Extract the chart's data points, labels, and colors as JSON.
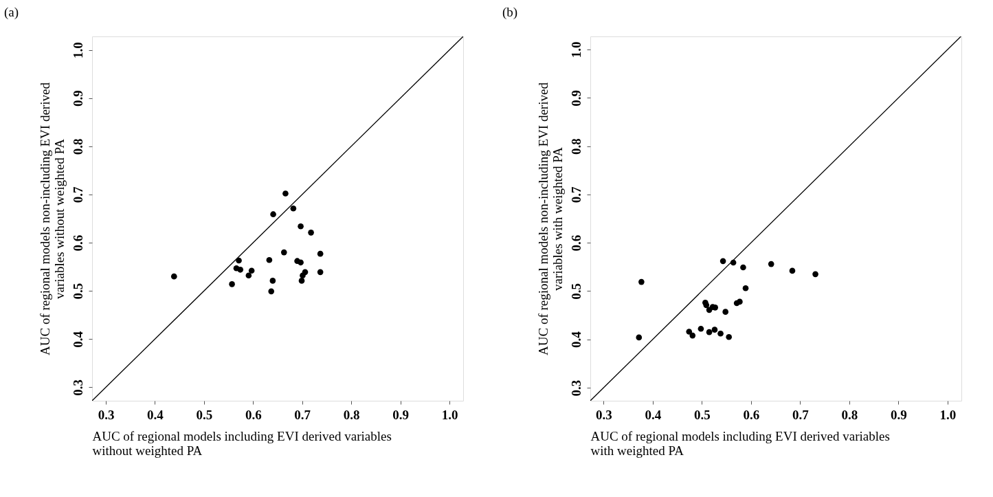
{
  "chart_data": [
    {
      "type": "scatter",
      "title": "(a)",
      "xlabel": "AUC of regional models including EVI derived variables\nwithout weighted PA",
      "ylabel": "AUC of regional models non-including EVI derived\nvariables without weighted PA",
      "xlim": [
        0.272,
        1.028
      ],
      "ylim": [
        0.272,
        1.028
      ],
      "xticks": [
        0.3,
        0.4,
        0.5,
        0.6,
        0.7,
        0.8,
        0.9,
        {
          "value": 1.0,
          "label": "1.0"
        }
      ],
      "yticks": [
        0.3,
        0.4,
        0.5,
        0.6,
        0.7,
        0.8,
        0.9,
        {
          "value": 1.0,
          "label": "1.0"
        }
      ],
      "grid": false,
      "series": [
        {
          "color": "#000000",
          "marker": "circle",
          "x": [
            0.439,
            0.666,
            0.682,
            0.641,
            0.697,
            0.718,
            0.663,
            0.737,
            0.571,
            0.633,
            0.69,
            0.697,
            0.566,
            0.574,
            0.597,
            0.591,
            0.706,
            0.701,
            0.737,
            0.64,
            0.699,
            0.557,
            0.637
          ],
          "values": [
            0.53,
            0.702,
            0.671,
            0.659,
            0.634,
            0.621,
            0.58,
            0.577,
            0.563,
            0.564,
            0.562,
            0.559,
            0.547,
            0.544,
            0.542,
            0.532,
            0.539,
            0.532,
            0.539,
            0.521,
            0.521,
            0.514,
            0.499
          ]
        },
        {
          "type": "line",
          "color": "#000000",
          "x": [
            0.272,
            1.028
          ],
          "values": [
            0.272,
            1.028
          ]
        }
      ]
    },
    {
      "type": "scatter",
      "title": "(b)",
      "xlabel": "AUC of regional models including EVI derived variables\nwith weighted PA",
      "ylabel": "AUC of regional models non-including EVI derived\nvariables with weighted PA",
      "xlim": [
        0.273,
        1.028
      ],
      "ylim": [
        0.273,
        1.027
      ],
      "xticks": [
        0.3,
        0.4,
        0.5,
        0.6,
        0.7,
        0.8,
        0.9,
        {
          "value": 1.0,
          "label": "1.0"
        }
      ],
      "yticks": [
        0.3,
        0.4,
        0.5,
        0.6,
        0.7,
        0.8,
        0.9,
        {
          "value": 1.0,
          "label": "1.0"
        }
      ],
      "grid": false,
      "series": [
        {
          "color": "#000000",
          "marker": "circle",
          "x": [
            0.377,
            0.372,
            0.543,
            0.564,
            0.584,
            0.641,
            0.684,
            0.731,
            0.589,
            0.507,
            0.509,
            0.515,
            0.522,
            0.527,
            0.548,
            0.571,
            0.577,
            0.474,
            0.481,
            0.498,
            0.515,
            0.526,
            0.538,
            0.555
          ],
          "values": [
            0.519,
            0.404,
            0.562,
            0.559,
            0.549,
            0.556,
            0.542,
            0.535,
            0.506,
            0.476,
            0.471,
            0.461,
            0.467,
            0.466,
            0.457,
            0.475,
            0.478,
            0.416,
            0.408,
            0.422,
            0.415,
            0.42,
            0.412,
            0.405
          ]
        },
        {
          "type": "line",
          "color": "#000000",
          "x": [
            0.273,
            1.027
          ],
          "values": [
            0.273,
            1.027
          ]
        }
      ]
    }
  ]
}
